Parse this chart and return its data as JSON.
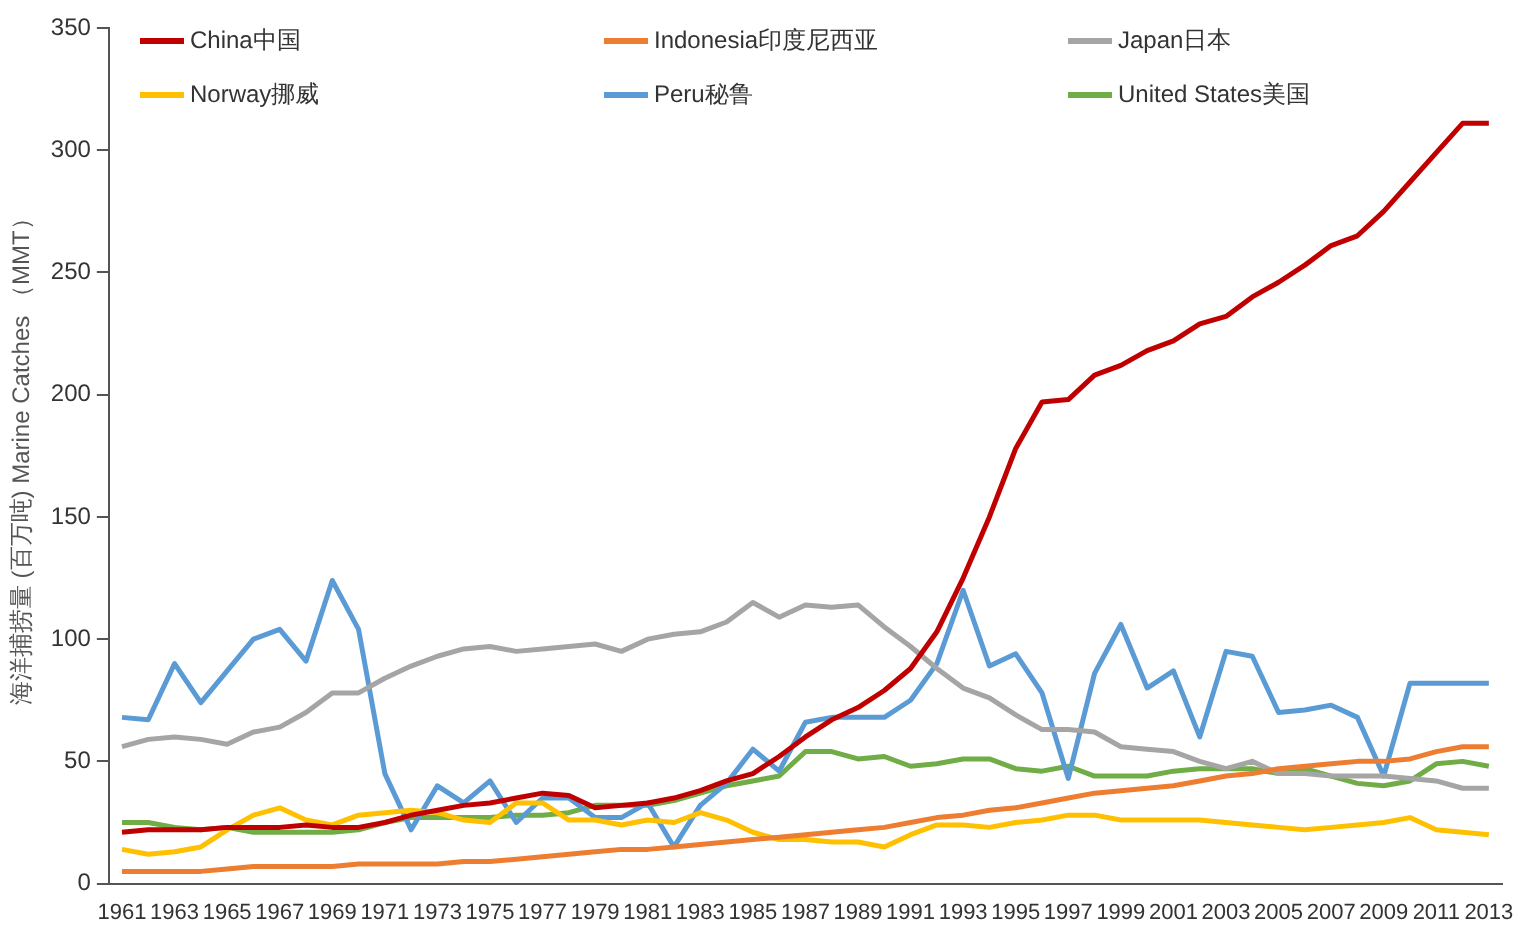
{
  "chart_data": {
    "type": "line",
    "ylabel": "海洋捕捞量 (百万吨) Marine Catches （MMT）",
    "categories": [
      "1961",
      null,
      "1963",
      null,
      "1965",
      null,
      "1967",
      null,
      "1969",
      null,
      "1971",
      null,
      "1973",
      null,
      "1975",
      null,
      "1977",
      null,
      "1979",
      null,
      "1981",
      null,
      "1983",
      null,
      "1985",
      null,
      "1987",
      null,
      "1989",
      null,
      "1991",
      null,
      "1993",
      null,
      "1995",
      null,
      "1997",
      null,
      "1999",
      null,
      "2001",
      null,
      "2003",
      null,
      "2005",
      null,
      "2007",
      null,
      "2009",
      null,
      "2011",
      null,
      "2013"
    ],
    "series": [
      {
        "name": "China中国",
        "color": "#c00000",
        "values": [
          21,
          22,
          22,
          22,
          23,
          23,
          23,
          24,
          23,
          23,
          25,
          28,
          30,
          32,
          33,
          35,
          37,
          36,
          31,
          32,
          33,
          35,
          38,
          42,
          45,
          52,
          60,
          67,
          72,
          79,
          88,
          103,
          125,
          150,
          178,
          197,
          198,
          208,
          212,
          218,
          222,
          229,
          232,
          240,
          246,
          253,
          261,
          265,
          275,
          287,
          299,
          311,
          311
        ]
      },
      {
        "name": "Indonesia印度尼西亚",
        "color": "#ed7d31",
        "values": [
          5,
          5,
          5,
          5,
          6,
          7,
          7,
          7,
          7,
          8,
          8,
          8,
          8,
          9,
          9,
          10,
          11,
          12,
          13,
          14,
          14,
          15,
          16,
          17,
          18,
          19,
          20,
          21,
          22,
          23,
          25,
          27,
          28,
          30,
          31,
          33,
          35,
          37,
          38,
          39,
          40,
          42,
          44,
          45,
          47,
          48,
          49,
          50,
          50,
          51,
          54,
          56,
          56
        ]
      },
      {
        "name": "Japan日本",
        "color": "#a5a5a5",
        "values": [
          56,
          59,
          60,
          59,
          57,
          62,
          64,
          70,
          78,
          78,
          84,
          89,
          93,
          96,
          97,
          95,
          96,
          97,
          98,
          95,
          100,
          102,
          103,
          107,
          115,
          109,
          114,
          113,
          114,
          105,
          97,
          88,
          80,
          76,
          69,
          63,
          63,
          62,
          56,
          55,
          54,
          50,
          47,
          50,
          45,
          45,
          44,
          44,
          44,
          43,
          42,
          39,
          39
        ]
      },
      {
        "name": "Norway挪威",
        "color": "#ffc000",
        "values": [
          14,
          12,
          13,
          15,
          22,
          28,
          31,
          26,
          24,
          28,
          29,
          30,
          29,
          26,
          25,
          33,
          33,
          26,
          26,
          24,
          26,
          25,
          29,
          26,
          21,
          18,
          18,
          17,
          17,
          15,
          20,
          24,
          24,
          23,
          25,
          26,
          28,
          28,
          26,
          26,
          26,
          26,
          25,
          24,
          23,
          22,
          23,
          24,
          25,
          27,
          22,
          21,
          20
        ]
      },
      {
        "name": "Peru秘鲁",
        "color": "#5b9bd5",
        "values": [
          68,
          67,
          90,
          74,
          87,
          100,
          104,
          91,
          124,
          104,
          45,
          22,
          40,
          33,
          42,
          25,
          35,
          35,
          27,
          27,
          33,
          15,
          32,
          41,
          55,
          46,
          66,
          68,
          68,
          68,
          75,
          90,
          120,
          89,
          94,
          78,
          43,
          86,
          106,
          80,
          87,
          60,
          95,
          93,
          70,
          71,
          73,
          68,
          44,
          82,
          82,
          82,
          82
        ]
      },
      {
        "name": "United States美国",
        "color": "#70ad47",
        "values": [
          25,
          25,
          23,
          22,
          23,
          21,
          21,
          21,
          21,
          22,
          25,
          27,
          27,
          27,
          27,
          28,
          28,
          29,
          32,
          32,
          32,
          34,
          37,
          40,
          42,
          44,
          54,
          54,
          51,
          52,
          48,
          49,
          51,
          51,
          47,
          46,
          48,
          44,
          44,
          44,
          46,
          47,
          47,
          47,
          45,
          47,
          44,
          41,
          40,
          42,
          49,
          50,
          48
        ]
      }
    ],
    "ylim": [
      0,
      350
    ],
    "yticks": [
      0,
      50,
      100,
      150,
      200,
      250,
      300,
      350
    ],
    "grid": false,
    "legend": "top left",
    "marker": "none",
    "line_style": "solid"
  }
}
